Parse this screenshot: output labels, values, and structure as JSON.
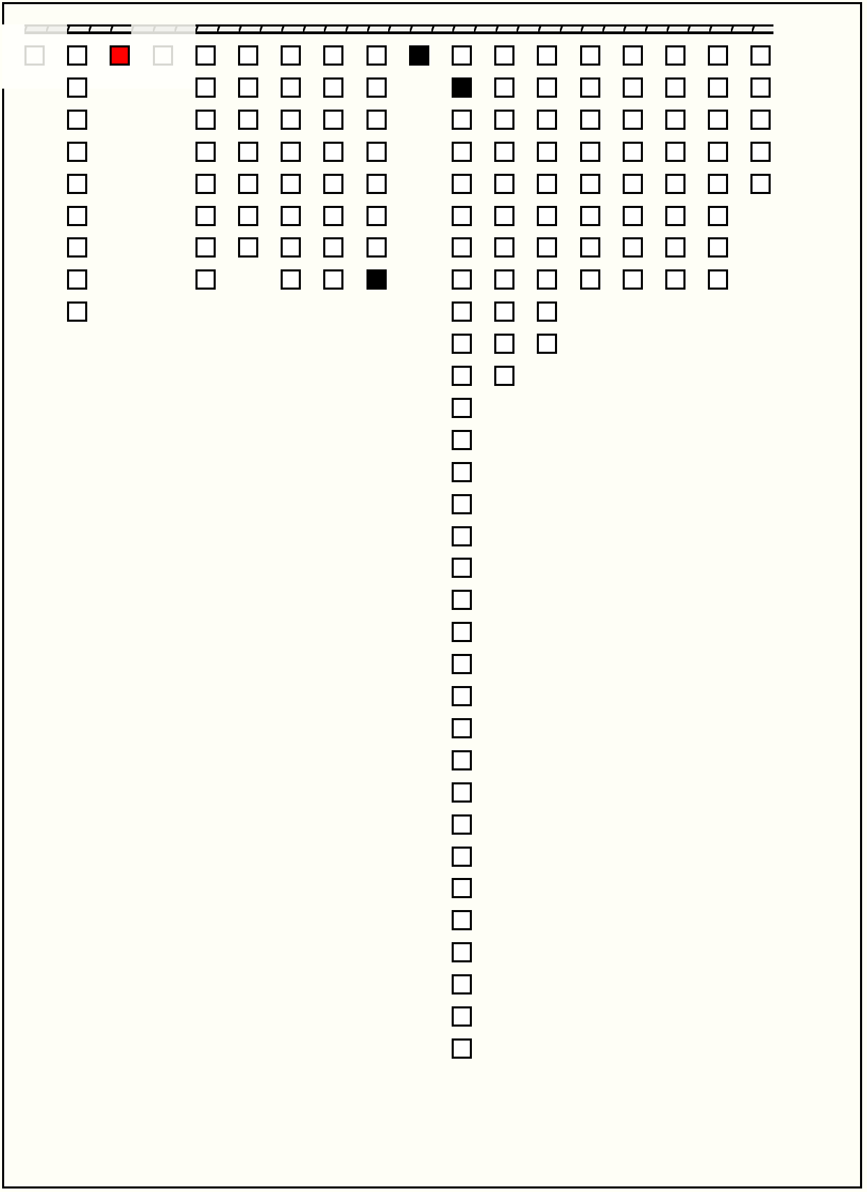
{
  "colors": {
    "background": "#fffff6",
    "empty": "#ffffff",
    "outline": "#000000",
    "dimmed": "#d8d8d2",
    "highlight": "#ff0000",
    "filled": "#000000"
  },
  "top_bar": {
    "segments": 35,
    "dimmed_segments": [
      0,
      1,
      5,
      6,
      7
    ]
  },
  "columns": [
    {
      "count": 1,
      "dimmed": true,
      "special": {}
    },
    {
      "count": 9,
      "special": {}
    },
    {
      "count": 1,
      "special": {
        "0": "red"
      }
    },
    {
      "count": 1,
      "dimmed": true,
      "special": {}
    },
    {
      "count": 8,
      "special": {}
    },
    {
      "count": 7,
      "special": {}
    },
    {
      "count": 8,
      "special": {}
    },
    {
      "count": 8,
      "special": {}
    },
    {
      "count": 8,
      "special": {
        "7": "black"
      }
    },
    {
      "count": 1,
      "special": {
        "0": "black"
      }
    },
    {
      "count": 32,
      "special": {
        "1": "black"
      }
    },
    {
      "count": 11,
      "special": {}
    },
    {
      "count": 10,
      "special": {}
    },
    {
      "count": 8,
      "special": {}
    },
    {
      "count": 8,
      "special": {}
    },
    {
      "count": 8,
      "special": {}
    },
    {
      "count": 8,
      "special": {}
    },
    {
      "count": 5,
      "special": {}
    }
  ]
}
